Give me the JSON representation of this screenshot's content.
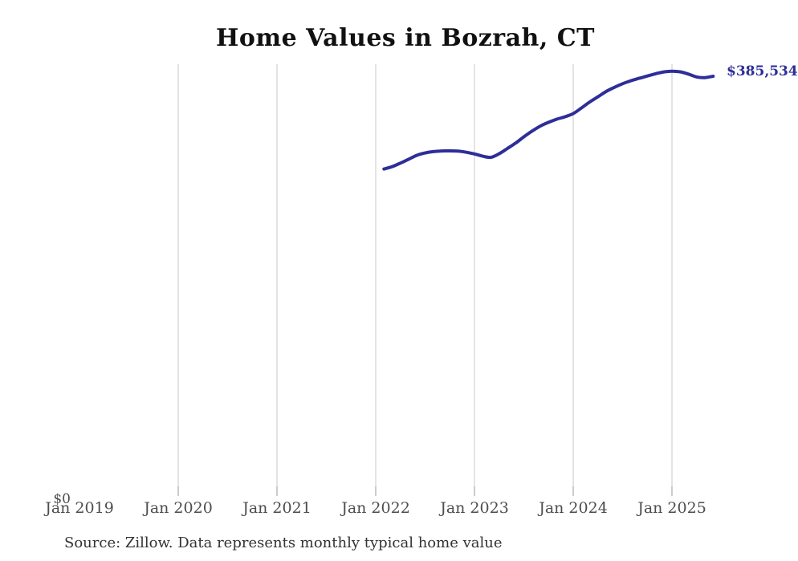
{
  "chart": {
    "title": "Home Values in Bozrah, CT",
    "source_note": "Source: Zillow. Data represents monthly typical home value"
  },
  "chart_data": {
    "type": "line",
    "title": "Home Values in Bozrah, CT",
    "series_name": "Monthly typical home value",
    "x": [
      "Feb 2022",
      "Mar 2022",
      "Apr 2022",
      "May 2022",
      "Jun 2022",
      "Jul 2022",
      "Aug 2022",
      "Sep 2022",
      "Oct 2022",
      "Nov 2022",
      "Dec 2022",
      "Jan 2023",
      "Feb 2023",
      "Mar 2023",
      "Apr 2023",
      "May 2023",
      "Jun 2023",
      "Jul 2023",
      "Aug 2023",
      "Sep 2023",
      "Oct 2023",
      "Nov 2023",
      "Dec 2023",
      "Jan 2024",
      "Feb 2024",
      "Mar 2024",
      "Apr 2024",
      "May 2024",
      "Jun 2024",
      "Jul 2024",
      "Aug 2024",
      "Sep 2024",
      "Oct 2024",
      "Nov 2024",
      "Dec 2024",
      "Jan 2025",
      "Feb 2025",
      "Mar 2025",
      "Apr 2025",
      "May 2025",
      "Jun 2025"
    ],
    "values": [
      300300,
      302500,
      305800,
      309300,
      312900,
      315100,
      316300,
      316900,
      317000,
      316800,
      315700,
      314200,
      312100,
      311100,
      314400,
      319200,
      324100,
      329900,
      335200,
      339800,
      343200,
      346100,
      348300,
      351300,
      356400,
      361900,
      366700,
      371500,
      375400,
      378700,
      381400,
      383600,
      385800,
      387800,
      389500,
      390200,
      389600,
      387500,
      384900,
      384300,
      385534
    ],
    "x_ticks": [
      "Jan 2019",
      "Jan 2020",
      "Jan 2021",
      "Jan 2022",
      "Jan 2023",
      "Jan 2024",
      "Jan 2025"
    ],
    "y_zero_label": "$0",
    "end_label": "$385,534",
    "xlabel": "",
    "ylabel": "",
    "ylim": [
      0,
      396600
    ],
    "grid": "vertical-only",
    "legend": "none",
    "line_color": "#2e2e99",
    "grid_color": "#c9c9c9",
    "tick_color": "#999999"
  }
}
